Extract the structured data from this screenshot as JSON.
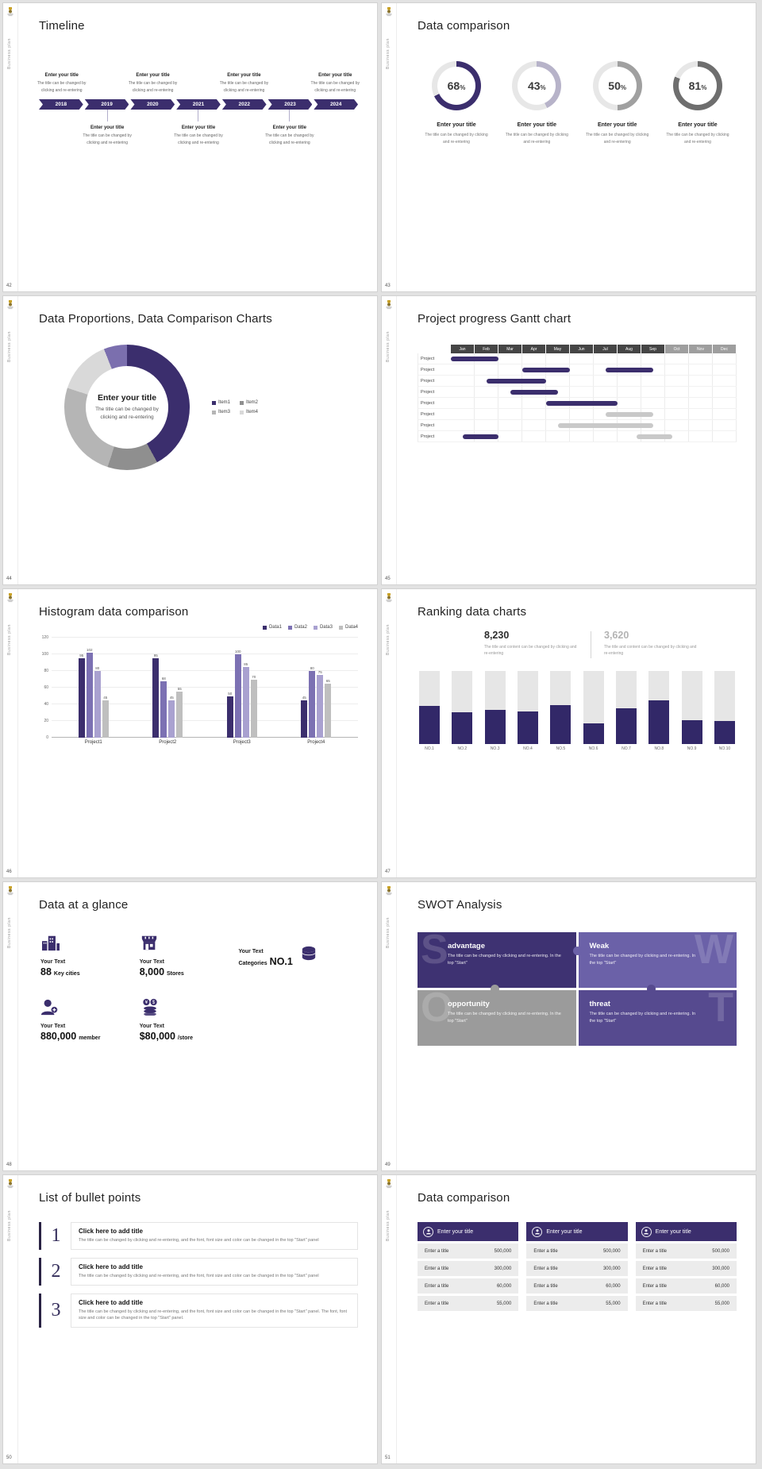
{
  "theme": {
    "purple_dark": "#3b2e6d",
    "purple_mid": "#7c71b3",
    "purple_light": "#a9a1d0",
    "gray_mid": "#9e9e9e",
    "gray_light": "#d9d9d9",
    "bar_dark": "#322868"
  },
  "common": {
    "vertical_label": "Business plan"
  },
  "slides": {
    "tl": {
      "number": "42",
      "title": "Timeline",
      "years": [
        "2018",
        "2019",
        "2020",
        "2021",
        "2022",
        "2023",
        "2024"
      ],
      "item_title": "Enter your title",
      "item_body": "The title can be changed by clicking and re-entering"
    },
    "dc": {
      "number": "43",
      "title": "Data comparison",
      "item_title": "Enter your title",
      "item_body": "The title can be changed by clicking and re-entering",
      "rings": [
        {
          "percent": 68,
          "color": "#3b2e6d"
        },
        {
          "percent": 43,
          "color": "#b7b3c9"
        },
        {
          "percent": 50,
          "color": "#a0a0a0"
        },
        {
          "percent": 81,
          "color": "#6e6e6e"
        }
      ]
    },
    "pie": {
      "number": "44",
      "title": "Data Proportions, Data Comparison Charts",
      "center_title": "Enter your title",
      "center_body": "The title can be changed by clicking and re-entering",
      "segments": [
        {
          "color": "#3b2e6d",
          "pct": 42
        },
        {
          "color": "#8f8f8f",
          "pct": 13
        },
        {
          "color": "#b5b5b5",
          "pct": 25
        },
        {
          "color": "#d9d9d9",
          "pct": 14
        },
        {
          "color": "#7b6fae",
          "pct": 6
        }
      ],
      "legend": [
        {
          "label": "Item1",
          "color": "#3b2e6d"
        },
        {
          "label": "Item2",
          "color": "#8f8f8f"
        },
        {
          "label": "Item3",
          "color": "#b5b5b5"
        },
        {
          "label": "Item4",
          "color": "#d9d9d9"
        }
      ]
    },
    "gantt": {
      "number": "45",
      "title": "Project progress Gantt chart",
      "months": [
        "Jan",
        "Feb",
        "Mar",
        "Apr",
        "May",
        "Jun",
        "Jul",
        "Aug",
        "Sep",
        "Oct",
        "Nov",
        "Dec"
      ],
      "row_label": "Project",
      "rows": [
        {
          "bars": [
            {
              "start": 0,
              "span": 2,
              "color": "#3b2e6d"
            }
          ]
        },
        {
          "bars": [
            {
              "start": 3,
              "span": 2,
              "color": "#3b2e6d"
            },
            {
              "start": 6.5,
              "span": 2,
              "color": "#3b2e6d"
            }
          ]
        },
        {
          "bars": [
            {
              "start": 1.5,
              "span": 2.5,
              "color": "#3b2e6d"
            }
          ]
        },
        {
          "bars": [
            {
              "start": 2.5,
              "span": 2,
              "color": "#3b2e6d"
            }
          ]
        },
        {
          "bars": [
            {
              "start": 4,
              "span": 3,
              "color": "#3b2e6d"
            }
          ]
        },
        {
          "bars": [
            {
              "start": 6.5,
              "span": 2,
              "color": "#c9c9c9"
            }
          ]
        },
        {
          "bars": [
            {
              "start": 4.5,
              "span": 4,
              "color": "#c9c9c9"
            }
          ]
        },
        {
          "bars": [
            {
              "start": 0.5,
              "span": 1.5,
              "color": "#3b2e6d"
            },
            {
              "start": 7.8,
              "span": 1.5,
              "color": "#c9c9c9"
            }
          ]
        }
      ]
    },
    "hist": {
      "number": "46",
      "title": "Histogram data comparison",
      "chart_data": {
        "type": "bar",
        "categories": [
          "Project1",
          "Project2",
          "Project3",
          "Project4"
        ],
        "series": [
          {
            "name": "Data1",
            "color": "#3b2e6d",
            "values": [
              95,
              95,
              50,
              45
            ]
          },
          {
            "name": "Data2",
            "color": "#7c71b3",
            "values": [
              102,
              68,
              100,
              80
            ]
          },
          {
            "name": "Data3",
            "color": "#a9a1d0",
            "values": [
              80,
              45,
              85,
              75
            ]
          },
          {
            "name": "Data4",
            "color": "#bfbfbf",
            "values": [
              45,
              55,
              70,
              65
            ]
          }
        ],
        "ylim": [
          0,
          120
        ],
        "yticks": [
          0,
          20,
          40,
          60,
          80,
          100,
          120
        ],
        "legend_position": "top-right",
        "grid": true
      }
    },
    "rank": {
      "number": "47",
      "title": "Ranking data charts",
      "stat_left": {
        "value": "8,230",
        "caption": "The title and content can be changed by clicking and re-entering"
      },
      "stat_right": {
        "value": "3,620",
        "caption": "The title and content can be changed by clicking and re-entering"
      },
      "chart_data": {
        "type": "bar",
        "categories": [
          "NO.1",
          "NO.2",
          "NO.3",
          "NO.4",
          "NO.5",
          "NO.6",
          "NO.7",
          "NO.8",
          "NO.9",
          "NO.10"
        ],
        "values_pct": [
          52,
          44,
          47,
          45,
          53,
          28,
          49,
          60,
          33,
          31
        ],
        "track_color": "#e6e6e6",
        "fill_color": "#322868"
      }
    },
    "glance": {
      "number": "48",
      "title": "Data at a glance",
      "items": [
        {
          "label": "Your Text",
          "value": "88",
          "suffix": "Key cities",
          "icon": "city-buildings-icon"
        },
        {
          "label": "Your Text",
          "value": "8,000",
          "suffix": "Stores",
          "icon": "store-icon"
        },
        {
          "label": "Your Text",
          "prefix": "Categories",
          "value": "NO.1",
          "icon": "database-icon"
        },
        {
          "label": "Your Text",
          "value": "880,000",
          "suffix": "member",
          "icon": "member-icon"
        },
        {
          "label": "Your Text",
          "value": "$80,000",
          "suffix": "/store",
          "icon": "coins-icon"
        }
      ]
    },
    "swot": {
      "number": "49",
      "title": "SWOT Analysis",
      "quadrants": [
        {
          "letter": "S",
          "word": "advantage",
          "color": "#3e3272",
          "body": "The title can be changed by clicking and re-entering. In the top \"Start\""
        },
        {
          "letter": "W",
          "word": "Weak",
          "color": "#6b61a8",
          "body": "The title can be changed by clicking and re-entering. In the top \"Start\""
        },
        {
          "letter": "O",
          "word": "opportunity",
          "color": "#9b9b9b",
          "body": "The title can be changed by clicking and re-entering. In the top \"Start\""
        },
        {
          "letter": "T",
          "word": "threat",
          "color": "#564a8f",
          "body": "The title can be changed by clicking and re-entering. In the top \"Start\""
        }
      ]
    },
    "bullets": {
      "number": "50",
      "title": "List of bullet points",
      "items": [
        {
          "num": "1",
          "title": "Click here to add title",
          "body": "The title can be changed by clicking and re-entering, and the font, font size and color can be changed in the top \"Start\" panel"
        },
        {
          "num": "2",
          "title": "Click here to add title",
          "body": "The title can be changed by clicking and re-entering, and the font, font size and color can be changed in the top \"Start\" panel"
        },
        {
          "num": "3",
          "title": "Click here to add title",
          "body": "The title can be changed by clicking and re-entering, and the font, font size and color can be changed in the top \"Start\" panel. The font, font size and color can be changed in the top \"Start\" panel."
        }
      ]
    },
    "tables": {
      "number": "51",
      "title": "Data comparison",
      "columns": 3,
      "header_title": "Enter your title",
      "row_label": "Enter a title",
      "values": [
        "500,000",
        "300,000",
        "60,000",
        "55,000"
      ]
    }
  }
}
